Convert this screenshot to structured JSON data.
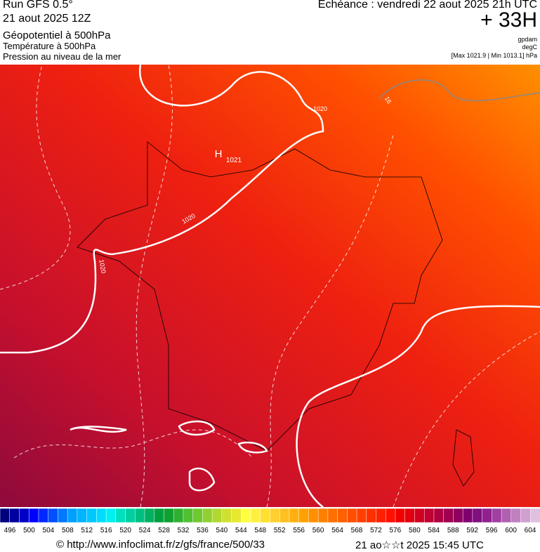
{
  "header": {
    "run": "Run GFS 0.5°",
    "run_date": "21 aout 2025 12Z",
    "field1": "Géopotentiel à 500hPa",
    "field2": "Température à 500hPa",
    "field3": "Pression au niveau de la mer",
    "valid": "Echéance : vendredi 22 aout 2025 21h UTC",
    "lead": "+ 33H",
    "unit1": "gpdam",
    "unit2": "degC",
    "range": "[Max 1021.9 | Min 1013.1] hPa"
  },
  "map": {
    "labels": [
      "1020",
      "1021",
      "H",
      "1020",
      "1020",
      "16"
    ]
  },
  "legend": {
    "labels": [
      496,
      500,
      504,
      508,
      512,
      516,
      520,
      524,
      528,
      532,
      536,
      540,
      544,
      548,
      552,
      556,
      560,
      564,
      568,
      572,
      576,
      580,
      584,
      588,
      592,
      596,
      600,
      604
    ],
    "colors": [
      "#00007f",
      "#0000a0",
      "#0000c8",
      "#0000ff",
      "#0028ff",
      "#0050ff",
      "#0078ff",
      "#00a0ff",
      "#00b4ff",
      "#00c8ff",
      "#00dcff",
      "#00f0f0",
      "#00e0c0",
      "#00d0a0",
      "#00c080",
      "#00b060",
      "#00a040",
      "#10a030",
      "#30b030",
      "#50c030",
      "#70c830",
      "#90d030",
      "#b0d830",
      "#d0e030",
      "#e8e830",
      "#ffff40",
      "#fff040",
      "#ffe030",
      "#ffd030",
      "#ffc020",
      "#ffb010",
      "#ffa000",
      "#ff9000",
      "#ff8000",
      "#ff7000",
      "#ff6000",
      "#ff5000",
      "#ff4000",
      "#ff3000",
      "#ff2000",
      "#ff1000",
      "#f00000",
      "#e00010",
      "#d00020",
      "#c00030",
      "#b00040",
      "#a00050",
      "#900060",
      "#800070",
      "#801080",
      "#902090",
      "#a040a0",
      "#b060b0",
      "#c080c0",
      "#d0a0d0",
      "#e0c0e0"
    ]
  },
  "footer": {
    "url": "© http://www.infoclimat.fr/z/gfs/france/500/33",
    "stamp": "21 ao☆☆t 2025 15:45 UTC"
  }
}
